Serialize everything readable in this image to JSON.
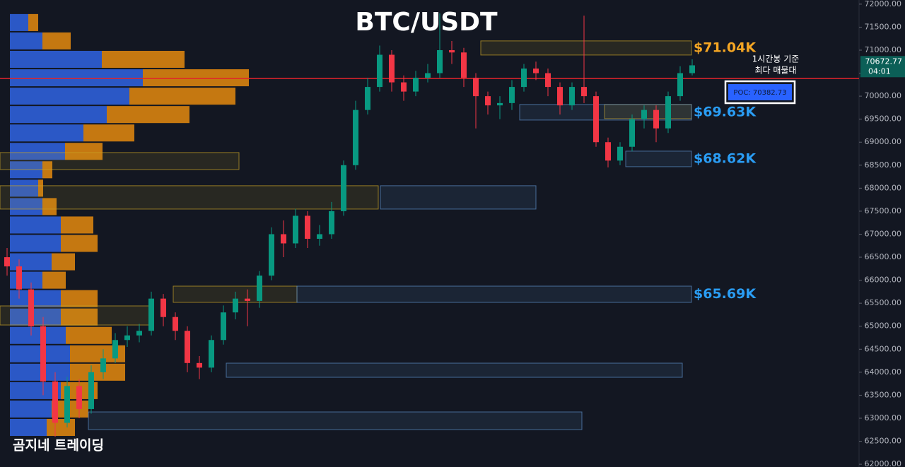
{
  "chart_data": {
    "type": "candlestick",
    "title": "BTC/USDT",
    "watermark": "곰지네 트레이딩",
    "annotation": [
      "1시간봉 기준",
      "최다 매물대"
    ],
    "ylim": [
      61940,
      72090
    ],
    "yticks": [
      {
        "value": 62000,
        "label": "62000.00"
      },
      {
        "value": 62500,
        "label": "62500.00"
      },
      {
        "value": 63000,
        "label": "63000.00"
      },
      {
        "value": 63500,
        "label": "63500.00"
      },
      {
        "value": 64000,
        "label": "64000.00"
      },
      {
        "value": 64500,
        "label": "64500.00"
      },
      {
        "value": 65000,
        "label": "65000.00"
      },
      {
        "value": 65500,
        "label": "65500.00"
      },
      {
        "value": 66000,
        "label": "66000.00"
      },
      {
        "value": 66500,
        "label": "66500.00"
      },
      {
        "value": 67000,
        "label": "67000.00"
      },
      {
        "value": 67500,
        "label": "67500.00"
      },
      {
        "value": 68000,
        "label": "68000.00"
      },
      {
        "value": 68500,
        "label": "68500.00"
      },
      {
        "value": 69000,
        "label": "69000.00"
      },
      {
        "value": 69500,
        "label": "69500.00"
      },
      {
        "value": 70000,
        "label": "70000.00"
      },
      {
        "value": 70500,
        "label": "70500.00"
      },
      {
        "value": 71000,
        "label": "71000.00"
      },
      {
        "value": 71500,
        "label": "71500.00"
      },
      {
        "value": 72000,
        "label": "72000.00"
      }
    ],
    "up_color": "#089981",
    "down_color": "#f23645",
    "open": [
      66500,
      66300,
      65800,
      65000,
      63800,
      62900,
      63700,
      63200,
      64000,
      64300,
      64700,
      64800,
      64900,
      65600,
      65200,
      64900,
      64200,
      64100,
      64700,
      65300,
      65600,
      65550,
      66100,
      67000,
      66800,
      67400,
      66900,
      67000,
      67500,
      68500,
      69700,
      70200,
      70900,
      70300,
      70100,
      70400,
      70500,
      71000,
      70950,
      70400,
      70000,
      69800,
      69850,
      70200,
      70600,
      70500,
      70200,
      69800,
      70200,
      70000,
      69000,
      68600,
      68900,
      69500,
      69700,
      69300,
      70000,
      70500
    ],
    "high": [
      66700,
      66450,
      65950,
      65200,
      64000,
      63900,
      63850,
      64150,
      64500,
      64850,
      65000,
      65050,
      65750,
      65700,
      65300,
      65000,
      64350,
      64800,
      65450,
      65750,
      65800,
      66200,
      67150,
      67300,
      67550,
      67500,
      67200,
      67700,
      68600,
      69900,
      70400,
      71100,
      71000,
      70450,
      70550,
      70700,
      71800,
      71200,
      71050,
      70500,
      70100,
      70000,
      70350,
      70700,
      70750,
      70600,
      70300,
      70300,
      71750,
      70100,
      69100,
      69000,
      69600,
      69800,
      69800,
      70100,
      70650,
      70800
    ],
    "low": [
      66100,
      65600,
      64800,
      63500,
      62600,
      62800,
      63000,
      63100,
      63850,
      64200,
      64550,
      64650,
      64800,
      65000,
      64700,
      64000,
      63850,
      64000,
      64600,
      65150,
      65000,
      65400,
      66000,
      66500,
      66700,
      66700,
      66750,
      66900,
      67400,
      68400,
      69600,
      70100,
      70100,
      69900,
      70000,
      70300,
      70400,
      70700,
      70200,
      69300,
      69600,
      69500,
      69700,
      70100,
      70350,
      70000,
      69600,
      69700,
      69850,
      68900,
      68450,
      68500,
      68800,
      69300,
      69000,
      69200,
      69900,
      70450
    ],
    "close": [
      66300,
      65800,
      65000,
      63800,
      62900,
      63700,
      63200,
      64000,
      64300,
      64700,
      64800,
      64900,
      65600,
      65200,
      64900,
      64200,
      64100,
      64700,
      65300,
      65600,
      65550,
      66100,
      67000,
      66800,
      67400,
      66900,
      67000,
      67500,
      68500,
      69700,
      70200,
      70900,
      70300,
      70100,
      70400,
      70500,
      71000,
      70950,
      70400,
      70000,
      69800,
      69850,
      70200,
      70600,
      70500,
      70200,
      69800,
      70200,
      70000,
      69000,
      68600,
      68900,
      69500,
      69700,
      69300,
      70000,
      70500,
      70670
    ],
    "last_price": 70672.77,
    "countdown": "04:01",
    "poc": {
      "value": 70382.73,
      "label": "POC: 70382.73"
    },
    "volume_profile": {
      "bins": [
        71800,
        71400,
        71000,
        70600,
        70200,
        69800,
        69400,
        69000,
        68600,
        68200,
        67800,
        67400,
        67000,
        66600,
        66200,
        65800,
        65400,
        65000,
        64600,
        64200,
        63800,
        63400,
        63000,
        62600
      ],
      "buy": [
        26,
        46,
        130,
        188,
        169,
        137,
        104,
        78,
        46,
        40,
        46,
        72,
        72,
        59,
        46,
        72,
        72,
        79,
        85,
        85,
        72,
        59,
        52
      ],
      "sell": [
        14,
        40,
        117,
        150,
        150,
        117,
        72,
        53,
        14,
        7,
        20,
        46,
        52,
        33,
        33,
        52,
        52,
        65,
        78,
        78,
        52,
        52,
        40
      ],
      "buy_color": "#2f5fd8",
      "sell_color": "#d9830f"
    },
    "zones": [
      {
        "low": 70894,
        "high": 71201,
        "color": "#c9a227",
        "label": "$71.04K",
        "label_color": "#f5a623"
      },
      {
        "low": 69512,
        "high": 69819,
        "color": "#c9a227"
      },
      {
        "low": 69481,
        "high": 69819,
        "color": "#5b8fc7",
        "label": "$69.63K",
        "label_color": "#2a9df4"
      },
      {
        "low": 68467,
        "high": 68805,
        "color": "#5b8fc7",
        "label": "$68.62K",
        "label_color": "#2a9df4"
      },
      {
        "low": 68406,
        "high": 68774,
        "color": "#c9a227"
      },
      {
        "low": 67546,
        "high": 68053,
        "color": "#c9a227"
      },
      {
        "low": 67546,
        "high": 68053,
        "color": "#5b8fc7"
      },
      {
        "low": 65518,
        "high": 65871,
        "color": "#c9a227"
      },
      {
        "low": 65518,
        "high": 65871,
        "color": "#5b8fc7",
        "label": "$65.69K",
        "label_color": "#2a9df4"
      },
      {
        "low": 65026,
        "high": 65441,
        "color": "#c9a227"
      },
      {
        "low": 63890,
        "high": 64197,
        "color": "#5b8fc7"
      },
      {
        "low": 62753,
        "high": 63137,
        "color": "#5b8fc7"
      }
    ]
  }
}
